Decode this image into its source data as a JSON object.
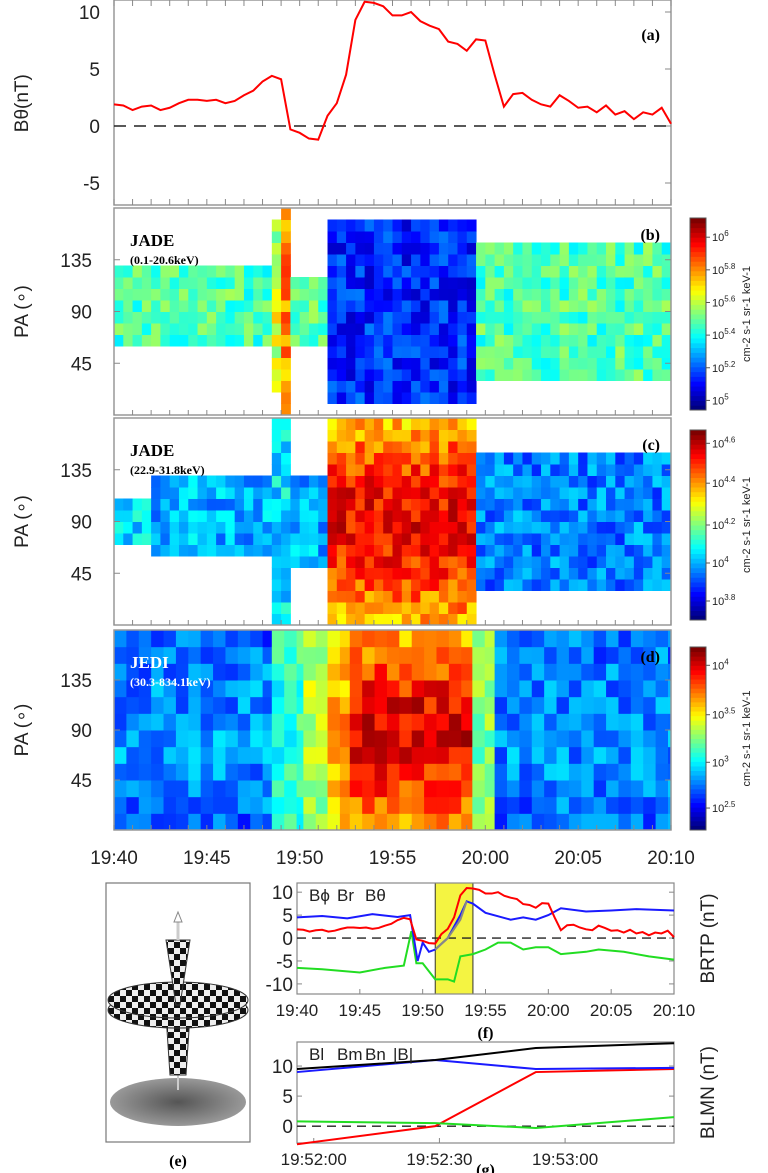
{
  "chart_data": [
    {
      "id": "a",
      "type": "line",
      "panel_label": "(a)",
      "ylabel": "Bθ(nT)",
      "ylim": [
        -7,
        11
      ],
      "yticks": [
        "10",
        "5",
        "0",
        "-5"
      ],
      "ytick_values": [
        10,
        5,
        0,
        -5
      ],
      "xlim_min": [
        0,
        30
      ],
      "series": [
        {
          "name": "Bθ",
          "color": "#ff0000",
          "values": [
            1.9,
            1.8,
            1.4,
            1.7,
            1.8,
            1.4,
            1.6,
            2.0,
            2.3,
            2.3,
            2.2,
            2.3,
            2.0,
            2.2,
            2.7,
            3.1,
            3.9,
            4.4,
            4.1,
            -0.3,
            -0.6,
            -1.1,
            -1.2,
            0.9,
            2.0,
            4.5,
            9.3,
            10.9,
            10.8,
            10.5,
            9.7,
            9.7,
            10.0,
            9.2,
            8.8,
            8.5,
            7.4,
            7.2,
            6.6,
            7.6,
            7.5,
            4.5,
            1.7,
            2.8,
            2.9,
            2.3,
            1.9,
            1.7,
            2.7,
            2.2,
            1.6,
            1.7,
            1.2,
            1.8,
            1.0,
            1.3,
            0.6,
            1.2,
            1.0,
            1.6,
            0.2
          ]
        }
      ]
    },
    {
      "id": "b",
      "type": "heatmap",
      "panel_label": "(b)",
      "instrument": "JADE",
      "energy": "(0.1-20.6keV)",
      "ylabel": "PA (∘)",
      "yticks": [
        "135",
        "90",
        "45"
      ],
      "ytick_values": [
        135,
        90,
        45
      ],
      "colorbar": {
        "ticks": [
          "10^6",
          "10^5.8",
          "10^5.6",
          "10^5.4",
          "10^5.2",
          "10^5"
        ],
        "tick_levels": [
          0.9,
          0.73,
          0.56,
          0.39,
          0.22,
          0.05
        ],
        "label": "cm-2 s-1 sr-1 keV-1"
      },
      "time_bin_min": 0.5,
      "pa_bin_deg": 10,
      "segments": [
        {
          "t": [
            0,
            8.5
          ],
          "pa": [
            60,
            130
          ],
          "level": 0.45,
          "boost": 0.0
        },
        {
          "t": [
            8.5,
            9.0
          ],
          "pa": [
            20,
            170
          ],
          "level": 0.5,
          "boost": 0.1
        },
        {
          "t": [
            9.0,
            9.5
          ],
          "pa": [
            0,
            180
          ],
          "level": 0.7,
          "boost": 0.05
        },
        {
          "t": [
            9.5,
            11.5
          ],
          "pa": [
            60,
            120
          ],
          "level": 0.45,
          "boost": 0.0
        },
        {
          "t": [
            11.5,
            19.5
          ],
          "pa": [
            10,
            170
          ],
          "level": 0.16,
          "boost": 0.0
        },
        {
          "t": [
            19.5,
            30
          ],
          "pa": [
            30,
            150
          ],
          "level": 0.45,
          "boost": 0.0
        }
      ]
    },
    {
      "id": "c",
      "type": "heatmap",
      "panel_label": "(c)",
      "instrument": "JADE",
      "energy": "(22.9-31.8keV)",
      "ylabel": "PA (∘)",
      "yticks": [
        "135",
        "90",
        "45"
      ],
      "ytick_values": [
        135,
        90,
        45
      ],
      "colorbar": {
        "ticks": [
          "10^4.6",
          "10^4.4",
          "10^4.2",
          "10^4",
          "10^3.8"
        ],
        "tick_levels": [
          0.93,
          0.72,
          0.5,
          0.3,
          0.1
        ],
        "label": "cm-2 s-1 sr-1 keV-1"
      },
      "time_bin_min": 0.5,
      "pa_bin_deg": 10,
      "segments": [
        {
          "t": [
            0,
            2
          ],
          "pa": [
            70,
            110
          ],
          "level": 0.35,
          "boost": 0.0
        },
        {
          "t": [
            2,
            8.5
          ],
          "pa": [
            60,
            130
          ],
          "level": 0.3,
          "boost": 0.0
        },
        {
          "t": [
            8.5,
            9.5
          ],
          "pa": [
            0,
            180
          ],
          "level": 0.35,
          "boost": 0.0
        },
        {
          "t": [
            9.5,
            11.5
          ],
          "pa": [
            50,
            130
          ],
          "level": 0.3,
          "boost": 0.0
        },
        {
          "t": [
            11.5,
            19.5
          ],
          "pa": [
            0,
            180
          ],
          "level": 0.68,
          "boost": 0.2
        },
        {
          "t": [
            19.5,
            30
          ],
          "pa": [
            30,
            150
          ],
          "level": 0.25,
          "boost": 0.0
        }
      ]
    },
    {
      "id": "d",
      "type": "heatmap",
      "panel_label": "(d)",
      "instrument": "JEDI",
      "energy": "(30.3-834.1keV)",
      "ylabel": "PA (∘)",
      "yticks": [
        "135",
        "90",
        "45"
      ],
      "ytick_values": [
        135,
        90,
        45
      ],
      "xticks": [
        "19:40",
        "19:45",
        "19:50",
        "19:55",
        "20:00",
        "20:05",
        "20:10"
      ],
      "colorbar": {
        "ticks": [
          "10^4",
          "10^3.5",
          "10^3",
          "10^2.5"
        ],
        "tick_levels": [
          0.9,
          0.63,
          0.37,
          0.12
        ],
        "label": "cm-2 s-1 sr-1 keV-1"
      },
      "time_bin_min": 0.667,
      "pa_bin_deg": 15,
      "segments": [
        {
          "t": [
            0,
            8.5
          ],
          "pa": [
            0,
            180
          ],
          "level": 0.22,
          "boost": 0.05
        },
        {
          "t": [
            8.5,
            10.2
          ],
          "pa": [
            0,
            180
          ],
          "level": 0.42,
          "boost": 0.0
        },
        {
          "t": [
            10.2,
            11.5
          ],
          "pa": [
            0,
            180
          ],
          "level": 0.5,
          "boost": 0.05
        },
        {
          "t": [
            11.5,
            12.7
          ],
          "pa": [
            0,
            180
          ],
          "level": 0.66,
          "boost": 0.05
        },
        {
          "t": [
            12.7,
            19.3
          ],
          "pa": [
            0,
            180
          ],
          "level": 0.68,
          "boost": 0.22
        },
        {
          "t": [
            19.3,
            20.5
          ],
          "pa": [
            0,
            180
          ],
          "level": 0.5,
          "boost": 0.0
        },
        {
          "t": [
            20.5,
            30
          ],
          "pa": [
            0,
            180
          ],
          "level": 0.22,
          "boost": 0.05
        }
      ]
    },
    {
      "id": "f",
      "type": "line",
      "panel_label": "(f)",
      "ylabel": "BRTP (nT)",
      "ylim": [
        -12.2,
        12
      ],
      "yticks": [
        "10",
        "5",
        "0",
        "-5",
        "-10"
      ],
      "ytick_values": [
        10,
        5,
        0,
        -5,
        -10
      ],
      "xticks": [
        "19:40",
        "19:45",
        "19:50",
        "19:55",
        "20:00",
        "20:05",
        "20:10"
      ],
      "highlight_min": [
        11,
        14
      ],
      "legend": [
        "Bϕ",
        "Br",
        "Bθ"
      ],
      "series": [
        {
          "name": "Bϕ",
          "color": "#22dd22",
          "t": [
            0,
            2,
            5,
            7,
            8.5,
            9.1,
            9.5,
            10,
            11,
            12,
            12.5,
            13,
            14,
            15,
            16,
            17,
            18,
            19,
            20,
            21,
            23,
            24,
            26,
            28,
            30
          ],
          "values": [
            -6.5,
            -6.8,
            -7.5,
            -6.5,
            -6,
            1.5,
            -5.5,
            -5.5,
            -9,
            -9,
            -9.5,
            -4,
            -3.5,
            -2.5,
            -1,
            -1,
            -2.5,
            -2,
            -2,
            -3.5,
            -3,
            -2.5,
            -3,
            -4,
            -4.7
          ]
        },
        {
          "name": "Br",
          "color": "#1a1aff",
          "t": [
            0,
            2,
            4,
            6,
            8,
            9,
            9.6,
            10,
            10.5,
            11,
            12,
            13,
            13.5,
            14,
            15,
            17,
            18,
            19,
            20,
            21,
            23,
            25,
            27,
            30
          ],
          "values": [
            4.5,
            4.8,
            4.3,
            5.2,
            4.6,
            5.0,
            -5,
            -1,
            -3,
            -2.5,
            0,
            5,
            8,
            7.5,
            5.5,
            4,
            4.5,
            4,
            5,
            6.5,
            5.8,
            6,
            6.3,
            6
          ]
        },
        {
          "name": "Bθ",
          "color": "#ff0000",
          "ref": "a"
        },
        {
          "name": "|B| (highlight)",
          "color": "#888888",
          "t": [
            11,
            12,
            13,
            13.5
          ],
          "values": [
            -2.5,
            0,
            4,
            8
          ]
        }
      ]
    },
    {
      "id": "g",
      "type": "line",
      "panel_label": "(g)",
      "ylabel": "BLMN (nT)",
      "ylim": [
        -2.8,
        14
      ],
      "yticks": [
        "10",
        "5",
        "0"
      ],
      "ytick_values": [
        10,
        5,
        0
      ],
      "xticks": [
        "19:52:00",
        "19:52:30",
        "19:53:00"
      ],
      "xtick_seconds": [
        0,
        30,
        60
      ],
      "xlim_seconds": [
        -4,
        86
      ],
      "legend": [
        "Bl",
        "Bm",
        "Bn",
        "|B|"
      ],
      "series": [
        {
          "name": "Bl",
          "color": "#ff0000",
          "t": [
            -4,
            29,
            53,
            86
          ],
          "values": [
            -3,
            0,
            9,
            9.5
          ]
        },
        {
          "name": "Bm",
          "color": "#22dd22",
          "t": [
            -4,
            29,
            53,
            86
          ],
          "values": [
            0.8,
            0.5,
            -0.3,
            1.5
          ]
        },
        {
          "name": "Bn",
          "color": "#1a1aff",
          "t": [
            -4,
            29,
            53,
            86
          ],
          "values": [
            9,
            11,
            9.5,
            9.7
          ]
        },
        {
          "name": "|B|",
          "color": "#000000",
          "t": [
            -4,
            29,
            53,
            86
          ],
          "values": [
            9.5,
            11,
            13,
            13.8
          ]
        }
      ]
    }
  ],
  "figure": {
    "label_e": "(e)"
  }
}
